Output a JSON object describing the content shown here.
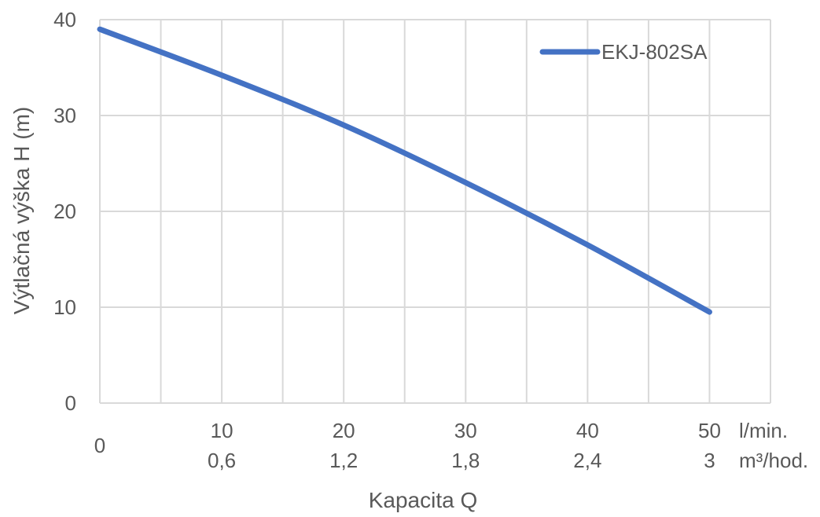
{
  "chart_data": {
    "type": "line",
    "xlabel": "Kapacita Q",
    "ylabel": "Výtlačná výška H (m)",
    "xlim": [
      0,
      55
    ],
    "ylim": [
      0,
      40
    ],
    "grid": true,
    "legend_position": "top-right",
    "y_ticks": [
      "0",
      "10",
      "20",
      "30",
      "40"
    ],
    "x_ticks_primary": [
      "0",
      "10",
      "20",
      "30",
      "40",
      "50"
    ],
    "x_ticks_secondary": [
      "",
      "0,6",
      "1,2",
      "1,8",
      "2,4",
      "3"
    ],
    "x_unit_primary": "l/min.",
    "x_unit_secondary": "m³/hod.",
    "series": [
      {
        "name": "EKJ-802SA",
        "color": "#4472c4",
        "x": [
          0,
          10,
          20,
          30,
          40,
          50
        ],
        "y": [
          39,
          34.2,
          29,
          23,
          16.5,
          9.5
        ]
      }
    ]
  }
}
